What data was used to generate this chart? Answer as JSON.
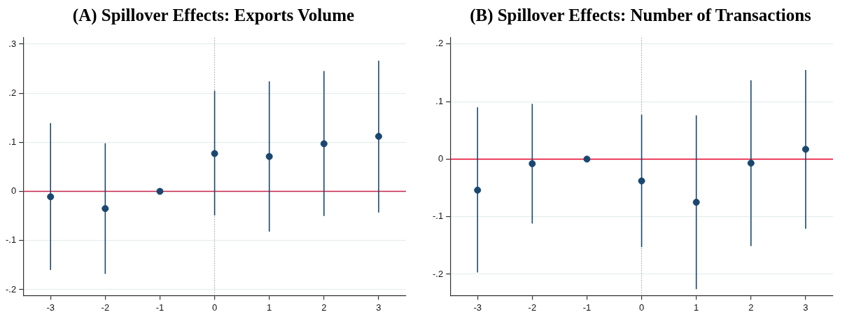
{
  "chart_data": [
    {
      "type": "scatter",
      "title": "(A) Spillover Effects: Exports Volume",
      "x": [
        -3,
        -2,
        -1,
        0,
        1,
        2,
        3
      ],
      "series": [
        {
          "color": "#1a476f",
          "values": [
            -0.011,
            -0.035,
            0,
            0.077,
            0.071,
            0.097,
            0.112
          ],
          "errors": [
            [
              -0.16,
              0.139
            ],
            [
              -0.168,
              0.098
            ],
            null,
            [
              -0.049,
              0.205
            ],
            [
              -0.082,
              0.224
            ],
            [
              -0.05,
              0.245
            ],
            [
              -0.043,
              0.266
            ]
          ]
        }
      ],
      "xlim": [
        -3.5,
        3.5
      ],
      "xticks": [
        -3,
        -2,
        -1,
        0,
        1,
        2,
        3
      ],
      "ylim": [
        -0.212,
        0.313
      ],
      "yticks": [
        {
          "value": -0.2,
          "label": "-.2"
        },
        {
          "value": -0.1,
          "label": "-.1"
        },
        0,
        {
          "value": 0.1,
          "label": ".1"
        },
        {
          "value": 0.2,
          "label": ".2"
        },
        {
          "value": 0.3,
          "label": ".3"
        }
      ],
      "ref_lines": [
        {
          "axis": "y",
          "value": 0,
          "color": "#c8244a",
          "line_style": "solid"
        },
        {
          "axis": "x",
          "value": 0,
          "color": "#999999",
          "line_style": "dotted"
        }
      ],
      "grid": "y",
      "legend": false,
      "marker": "circle"
    },
    {
      "type": "scatter",
      "title": "(B) Spillover Effects: Number of Transactions",
      "x": [
        -3,
        -2,
        -1,
        0,
        1,
        2,
        3
      ],
      "series": [
        {
          "color": "#1a476f",
          "values": [
            -0.054,
            -0.008,
            0,
            -0.038,
            -0.075,
            -0.007,
            0.017
          ],
          "errors": [
            [
              -0.197,
              0.09
            ],
            [
              -0.112,
              0.096
            ],
            null,
            [
              -0.153,
              0.077
            ],
            [
              -0.226,
              0.076
            ],
            [
              -0.151,
              0.137
            ],
            [
              -0.121,
              0.155
            ]
          ]
        }
      ],
      "xlim": [
        -3.5,
        3.5
      ],
      "xticks": [
        -3,
        -2,
        -1,
        0,
        1,
        2,
        3
      ],
      "ylim": [
        -0.237,
        0.211
      ],
      "yticks": [
        {
          "value": -0.2,
          "label": "-.2"
        },
        {
          "value": -0.1,
          "label": "-.1"
        },
        0,
        {
          "value": 0.1,
          "label": ".1"
        },
        {
          "value": 0.2,
          "label": ".2"
        }
      ],
      "ref_lines": [
        {
          "axis": "y",
          "value": 0,
          "color": "#e8002a",
          "line_style": "solid"
        },
        {
          "axis": "x",
          "value": 0,
          "color": "#999999",
          "line_style": "dotted"
        }
      ],
      "grid": "y",
      "legend": false,
      "marker": "circle"
    }
  ]
}
